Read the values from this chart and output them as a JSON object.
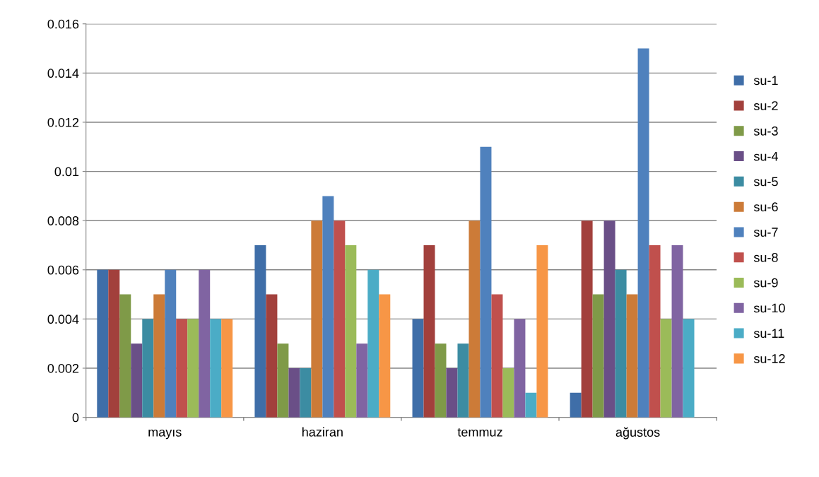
{
  "chart_data": {
    "type": "bar",
    "categories": [
      "mayıs",
      "haziran",
      "temmuz",
      "ağustos"
    ],
    "series": [
      {
        "name": "su-1",
        "color": "#3f6ea8",
        "values": [
          0.006,
          0.007,
          0.004,
          0.001
        ]
      },
      {
        "name": "su-2",
        "color": "#a2403c",
        "values": [
          0.006,
          0.005,
          0.007,
          0.008
        ]
      },
      {
        "name": "su-3",
        "color": "#7f9a48",
        "values": [
          0.005,
          0.003,
          0.003,
          0.005
        ]
      },
      {
        "name": "su-4",
        "color": "#6a4f87",
        "values": [
          0.003,
          0.002,
          0.002,
          0.008
        ]
      },
      {
        "name": "su-5",
        "color": "#3c8ca2",
        "values": [
          0.004,
          0.002,
          0.003,
          0.006
        ]
      },
      {
        "name": "su-6",
        "color": "#cc7b38",
        "values": [
          0.005,
          0.008,
          0.008,
          0.005
        ]
      },
      {
        "name": "su-7",
        "color": "#4f81bd",
        "values": [
          0.006,
          0.009,
          0.011,
          0.015
        ]
      },
      {
        "name": "su-8",
        "color": "#c0504d",
        "values": [
          0.004,
          0.008,
          0.005,
          0.007
        ]
      },
      {
        "name": "su-9",
        "color": "#9bbb59",
        "values": [
          0.004,
          0.007,
          0.002,
          0.004
        ]
      },
      {
        "name": "su-10",
        "color": "#8064a2",
        "values": [
          0.006,
          0.003,
          0.004,
          0.007
        ]
      },
      {
        "name": "su-11",
        "color": "#4bacc6",
        "values": [
          0.004,
          0.006,
          0.001,
          0.004
        ]
      },
      {
        "name": "su-12",
        "color": "#f79646",
        "values": [
          0.004,
          0.005,
          0.007,
          0
        ]
      }
    ],
    "ylim": [
      0,
      0.016
    ],
    "yticks": [
      0,
      0.002,
      0.004,
      0.006,
      0.008,
      0.01,
      0.012,
      0.014,
      0.016
    ],
    "grid": "y",
    "legend": "right"
  }
}
